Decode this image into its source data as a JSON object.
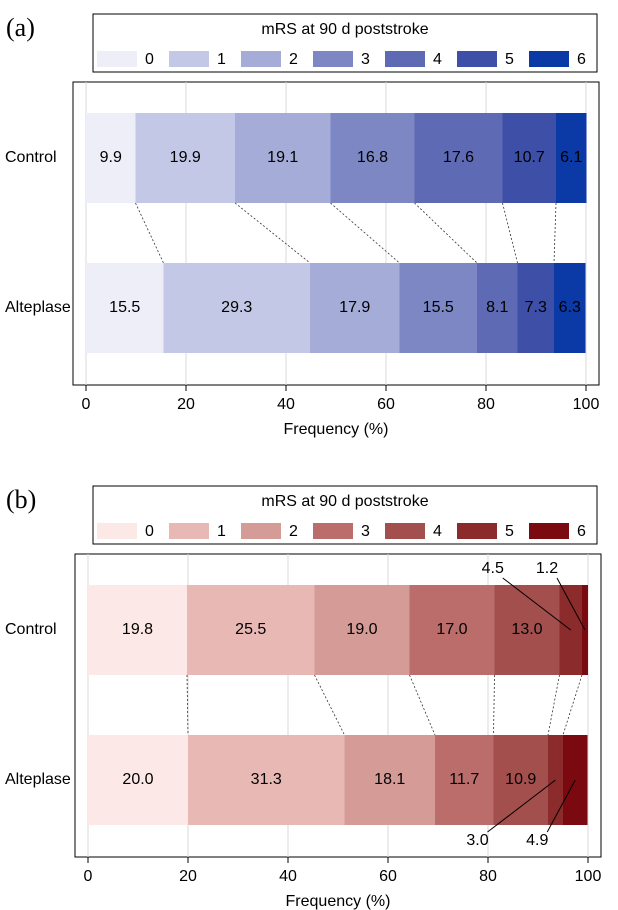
{
  "chart_data": [
    {
      "type": "bar",
      "orientation": "horizontal",
      "stacked": true,
      "panel_label": "(a)",
      "legend_title": "mRS at 90 d poststroke",
      "legend_position": "top",
      "categories": [
        "Control",
        "Alteplase"
      ],
      "series": [
        {
          "name": "0",
          "color": "#eeeef9",
          "values": [
            9.9,
            15.5
          ],
          "value_labels": [
            "9.9",
            "15.5"
          ]
        },
        {
          "name": "1",
          "color": "#c3c8e6",
          "values": [
            19.9,
            29.3
          ],
          "value_labels": [
            "19.9",
            "29.3"
          ]
        },
        {
          "name": "2",
          "color": "#a5acd8",
          "values": [
            19.1,
            17.9
          ],
          "value_labels": [
            "19.1",
            "17.9"
          ]
        },
        {
          "name": "3",
          "color": "#7c87c3",
          "values": [
            16.8,
            15.5
          ],
          "value_labels": [
            "16.8",
            "15.5"
          ]
        },
        {
          "name": "4",
          "color": "#5e6ab3",
          "values": [
            17.6,
            8.1
          ],
          "value_labels": [
            "17.6",
            "8.1"
          ]
        },
        {
          "name": "5",
          "color": "#3d4fa6",
          "values": [
            10.7,
            7.3
          ],
          "value_labels": [
            "10.7",
            "7.3"
          ]
        },
        {
          "name": "6",
          "color": "#0b3aa7",
          "values": [
            6.1,
            6.3
          ],
          "value_labels": [
            "6.1",
            "6.3"
          ]
        }
      ],
      "xlabel": "Frequency (%)",
      "xlim": [
        0,
        100
      ],
      "xticks": [
        0,
        20,
        40,
        60,
        80,
        100
      ],
      "grid": true
    },
    {
      "type": "bar",
      "orientation": "horizontal",
      "stacked": true,
      "panel_label": "(b)",
      "legend_title": "mRS at 90 d poststroke",
      "legend_position": "top",
      "categories": [
        "Control",
        "Alteplase"
      ],
      "series": [
        {
          "name": "0",
          "color": "#fce9e7",
          "values": [
            19.8,
            20.0
          ],
          "value_labels": [
            "19.8",
            "20.0"
          ]
        },
        {
          "name": "1",
          "color": "#e8b8b5",
          "values": [
            25.5,
            31.3
          ],
          "value_labels": [
            "25.5",
            "31.3"
          ]
        },
        {
          "name": "2",
          "color": "#d49b97",
          "values": [
            19.0,
            18.1
          ],
          "value_labels": [
            "19.0",
            "18.1"
          ]
        },
        {
          "name": "3",
          "color": "#ba6d6a",
          "values": [
            17.0,
            11.7
          ],
          "value_labels": [
            "17.0",
            "11.7"
          ]
        },
        {
          "name": "4",
          "color": "#a34f4e",
          "values": [
            13.0,
            10.9
          ],
          "value_labels": [
            "13.0",
            "10.9"
          ]
        },
        {
          "name": "5",
          "color": "#8b2b2c",
          "values": [
            4.5,
            3.0
          ],
          "value_labels": [
            "4.5",
            "3.0"
          ]
        },
        {
          "name": "6",
          "color": "#7a0a10",
          "values": [
            1.2,
            4.9
          ],
          "value_labels": [
            "1.2",
            "4.9"
          ]
        }
      ],
      "xlabel": "Frequency (%)",
      "xlim": [
        0,
        100
      ],
      "xticks": [
        0,
        20,
        40,
        60,
        80,
        100
      ],
      "grid": true
    }
  ]
}
